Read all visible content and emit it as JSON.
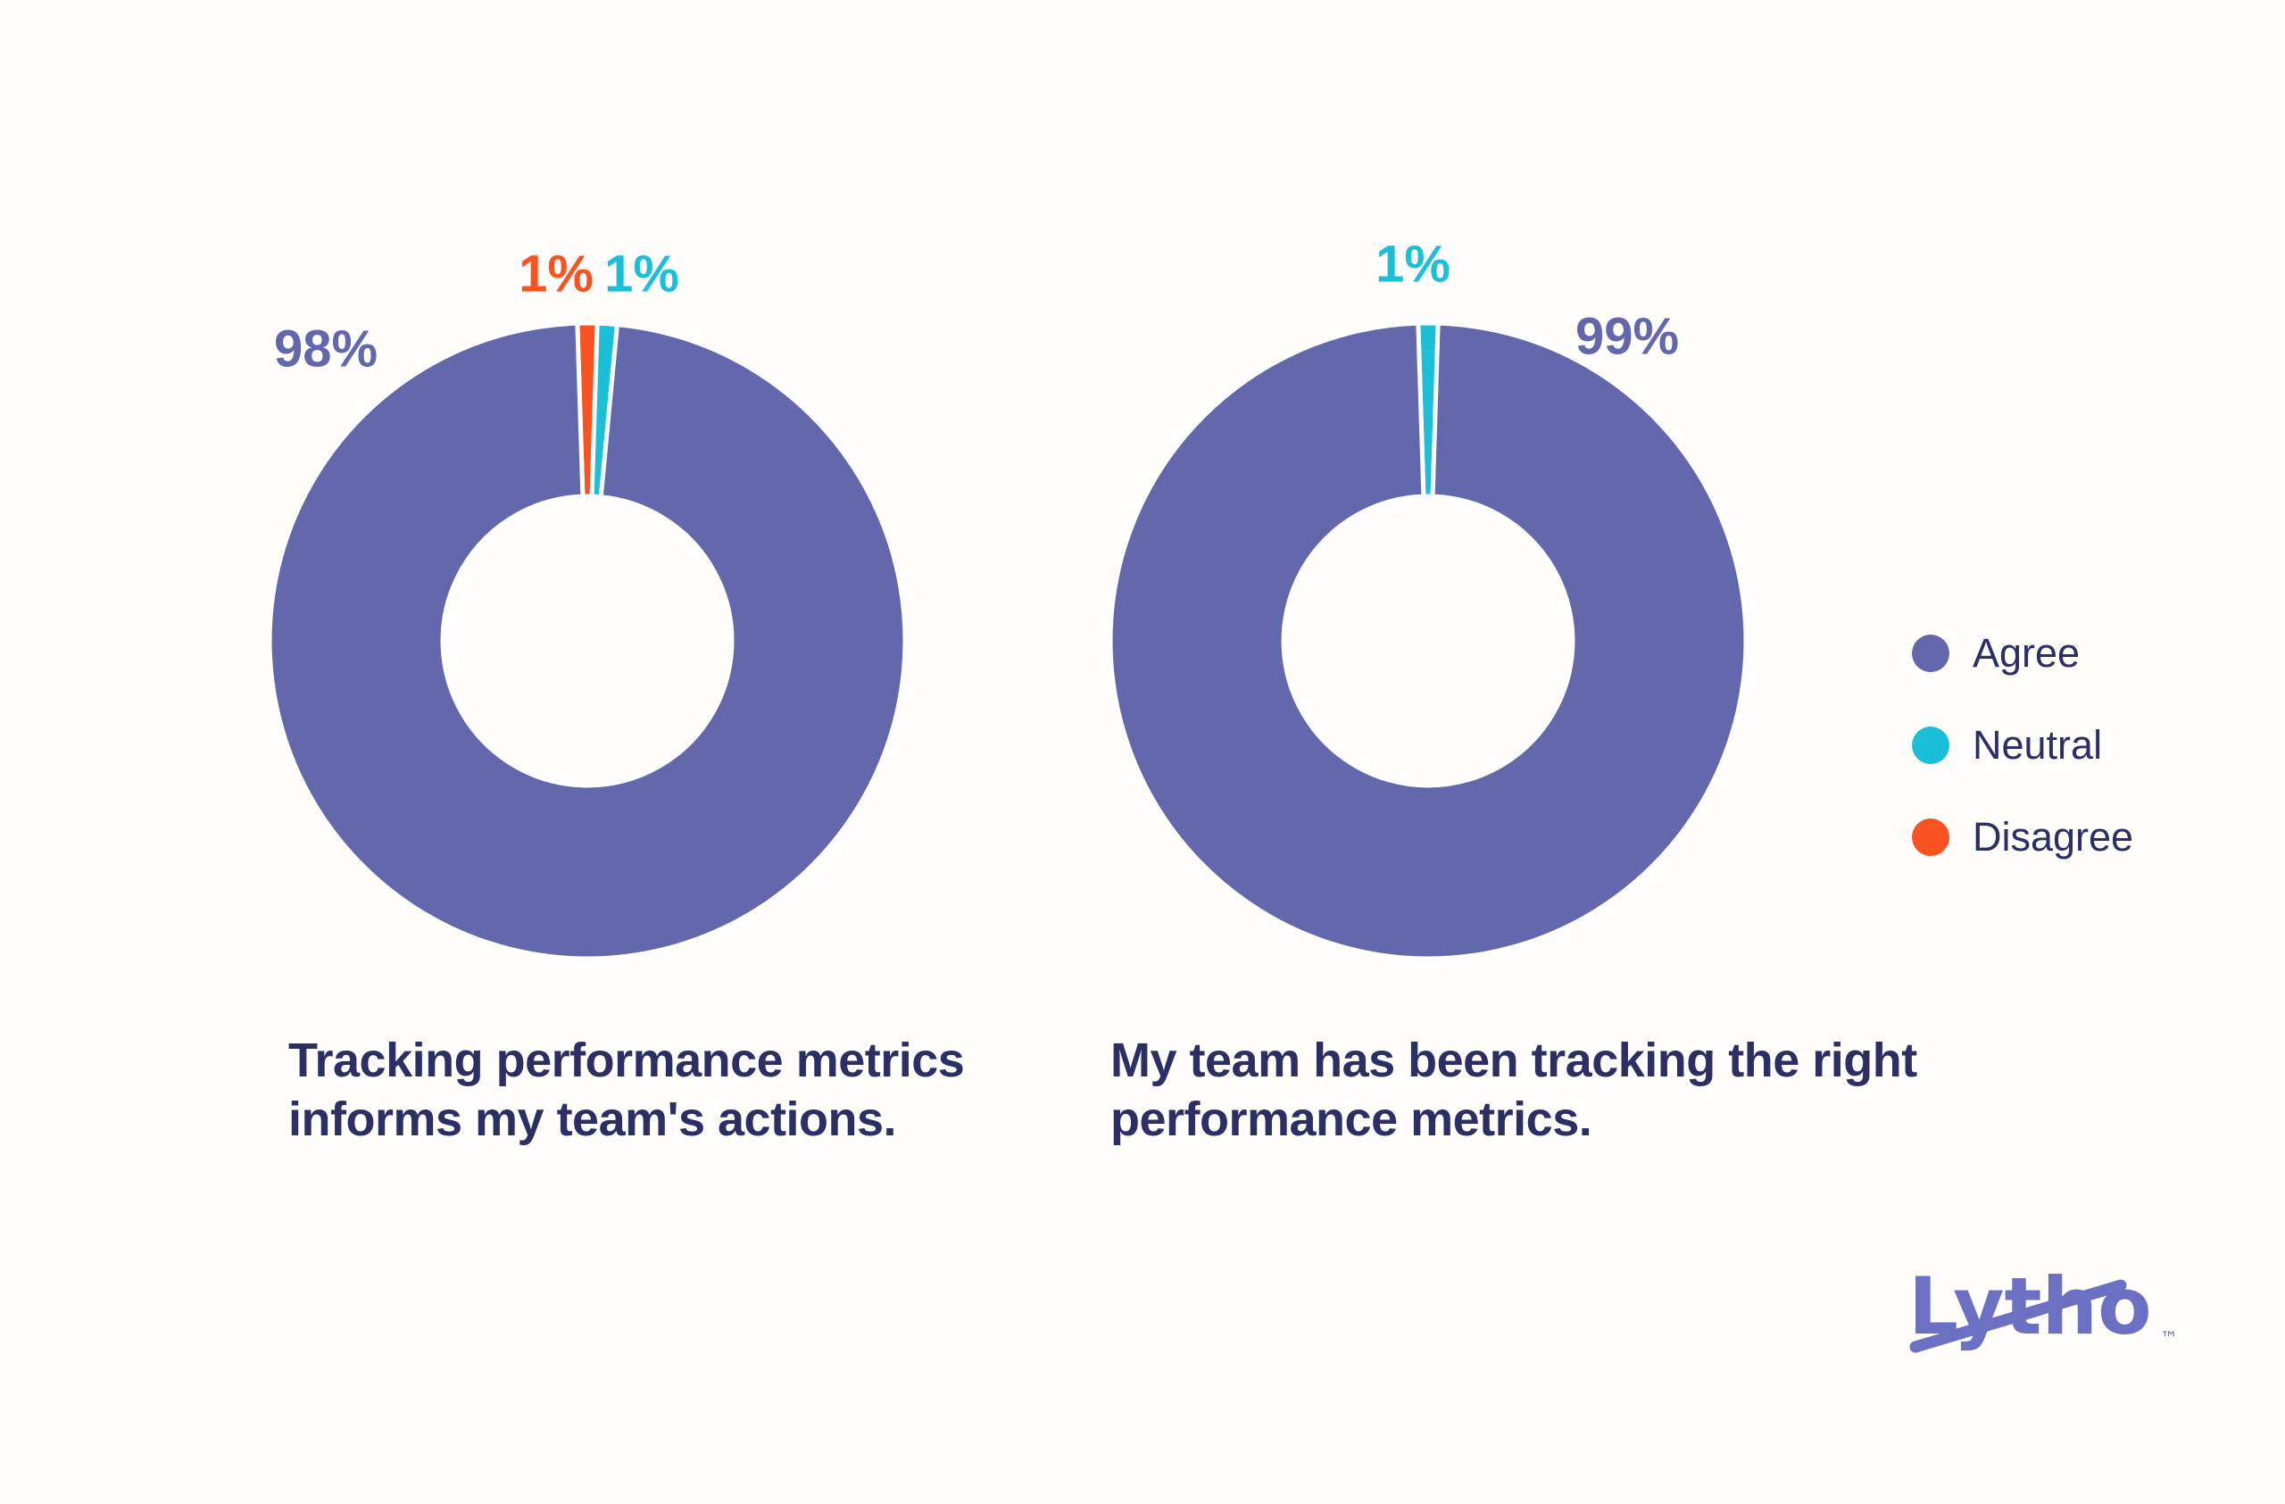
{
  "background": "#fffefc",
  "colors": {
    "agree": "#6367ac",
    "neutral": "#1bc0d8",
    "disagree": "#f85321",
    "text_navy": "#2b2f63",
    "logo_purple": "#6b70c2",
    "bg": "#fffefc"
  },
  "chart_data": [
    {
      "type": "pie",
      "subtype": "donut",
      "question": "Tracking performance metrics informs my team's actions.",
      "lines": [
        "Tracking performance metrics",
        "informs my team's actions."
      ],
      "categories": [
        "Disagree",
        "Neutral",
        "Agree"
      ],
      "values": [
        1,
        1,
        98
      ],
      "unit": "%",
      "segments": [
        {
          "category": "Disagree",
          "value_pct": 1,
          "label": "1%",
          "color": "#f85321"
        },
        {
          "category": "Neutral",
          "value_pct": 1,
          "label": "1%",
          "color": "#1bc0d8"
        },
        {
          "category": "Agree",
          "value_pct": 98,
          "label": "98%",
          "color": "#6367ac"
        }
      ],
      "start_offset_deg": -1.8,
      "inner_radius_ratio": 0.455,
      "legend_position": "right"
    },
    {
      "type": "pie",
      "subtype": "donut",
      "question": "My team has been tracking the right performance metrics.",
      "lines": [
        "My team has been tracking the right",
        "performance metrics."
      ],
      "categories": [
        "Neutral",
        "Agree"
      ],
      "values": [
        1,
        99
      ],
      "unit": "%",
      "segments": [
        {
          "category": "Neutral",
          "value_pct": 1,
          "label": "1%",
          "color": "#1bc0d8"
        },
        {
          "category": "Agree",
          "value_pct": 99,
          "label": "99%",
          "color": "#6367ac"
        }
      ],
      "start_offset_deg": -1.8,
      "inner_radius_ratio": 0.455,
      "legend_position": "right"
    }
  ],
  "legend": {
    "items": [
      {
        "label": "Agree",
        "color": "#6367ac"
      },
      {
        "label": "Neutral",
        "color": "#1bc0d8"
      },
      {
        "label": "Disagree",
        "color": "#f85321"
      }
    ]
  },
  "logo": {
    "text": "Lytho",
    "trademark": "™"
  }
}
